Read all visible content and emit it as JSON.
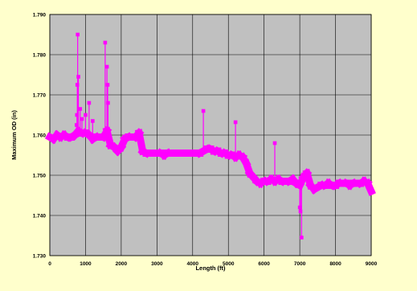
{
  "chart_data": {
    "type": "scatter",
    "title": "",
    "xlabel": "Length (ft)",
    "ylabel": "Maximum OD (in)",
    "xlim": [
      0,
      9000
    ],
    "ylim": [
      1.73,
      1.79
    ],
    "x_ticks": [
      0,
      1000,
      2000,
      3000,
      4000,
      5000,
      6000,
      7000,
      8000,
      9000
    ],
    "y_ticks": [
      1.73,
      1.74,
      1.75,
      1.76,
      1.77,
      1.78,
      1.79
    ],
    "x_tick_labels": [
      "0",
      "1000",
      "2000",
      "3000",
      "4000",
      "5000",
      "6000",
      "7000",
      "8000",
      "9000"
    ],
    "y_tick_labels": [
      "1.730",
      "1.740",
      "1.750",
      "1.760",
      "1.770",
      "1.780",
      "1.790"
    ],
    "grid": true,
    "legend": "none",
    "colors": {
      "page_background": "#ffffcc",
      "plot_background": "#c0c0c0",
      "gridline": "#000000",
      "marker": "#ff00ff"
    },
    "series": [
      {
        "x": [
          0,
          100,
          200,
          300,
          400,
          500,
          600,
          700,
          800,
          900,
          1000,
          1100,
          1200,
          1300,
          1400,
          1500,
          1600,
          1700,
          1800,
          1900,
          2000,
          2100,
          2200,
          2300,
          2400,
          2500,
          2600,
          2700,
          2800,
          2900,
          3000,
          3100,
          3200,
          3300,
          3400,
          3500,
          3600,
          3700,
          3800,
          3900,
          4000,
          4100,
          4200,
          4300,
          4400,
          4500,
          4600,
          4700,
          4800,
          4900,
          5000,
          5100,
          5200,
          5300,
          5400,
          5500,
          5600,
          5700,
          5800,
          5900,
          6000,
          6100,
          6200,
          6300,
          6400,
          6500,
          6600,
          6700,
          6800,
          6900,
          7000,
          7100,
          7200,
          7300,
          7400,
          7500,
          7600,
          7700,
          7800,
          7900,
          8000,
          8100,
          8200,
          8300,
          8400,
          8500,
          8600,
          8700,
          8800,
          8900,
          9000
        ],
        "y": [
          1.7595,
          1.759,
          1.76,
          1.7595,
          1.76,
          1.7595,
          1.7595,
          1.76,
          1.761,
          1.7605,
          1.7605,
          1.76,
          1.759,
          1.7595,
          1.7595,
          1.7595,
          1.761,
          1.7575,
          1.757,
          1.756,
          1.757,
          1.759,
          1.7595,
          1.7595,
          1.7595,
          1.7605,
          1.756,
          1.7555,
          1.7555,
          1.7555,
          1.7555,
          1.7555,
          1.755,
          1.7555,
          1.7555,
          1.7555,
          1.7555,
          1.7555,
          1.7555,
          1.7555,
          1.7555,
          1.7555,
          1.7555,
          1.756,
          1.7565,
          1.7565,
          1.756,
          1.756,
          1.7555,
          1.7555,
          1.755,
          1.755,
          1.7545,
          1.755,
          1.7545,
          1.753,
          1.7505,
          1.7495,
          1.7485,
          1.748,
          1.7485,
          1.7485,
          1.749,
          1.7485,
          1.749,
          1.7485,
          1.7485,
          1.7485,
          1.749,
          1.748,
          1.7475,
          1.7495,
          1.7505,
          1.7475,
          1.7465,
          1.747,
          1.7475,
          1.7475,
          1.748,
          1.7475,
          1.7475,
          1.748,
          1.748,
          1.748,
          1.7475,
          1.748,
          1.748,
          1.748,
          1.7485,
          1.748,
          1.746
        ]
      },
      {
        "x": [
          750,
          760,
          770,
          780,
          800,
          850,
          900,
          1000,
          1100,
          1200,
          1550,
          1600,
          1620,
          1630,
          4300,
          5200,
          6300,
          7000,
          7020,
          7050
        ],
        "y": [
          1.7625,
          1.765,
          1.7725,
          1.785,
          1.7745,
          1.7665,
          1.764,
          1.765,
          1.768,
          1.7635,
          1.783,
          1.777,
          1.7725,
          1.768,
          1.766,
          1.7632,
          1.758,
          1.742,
          1.741,
          1.7345
        ]
      }
    ]
  }
}
